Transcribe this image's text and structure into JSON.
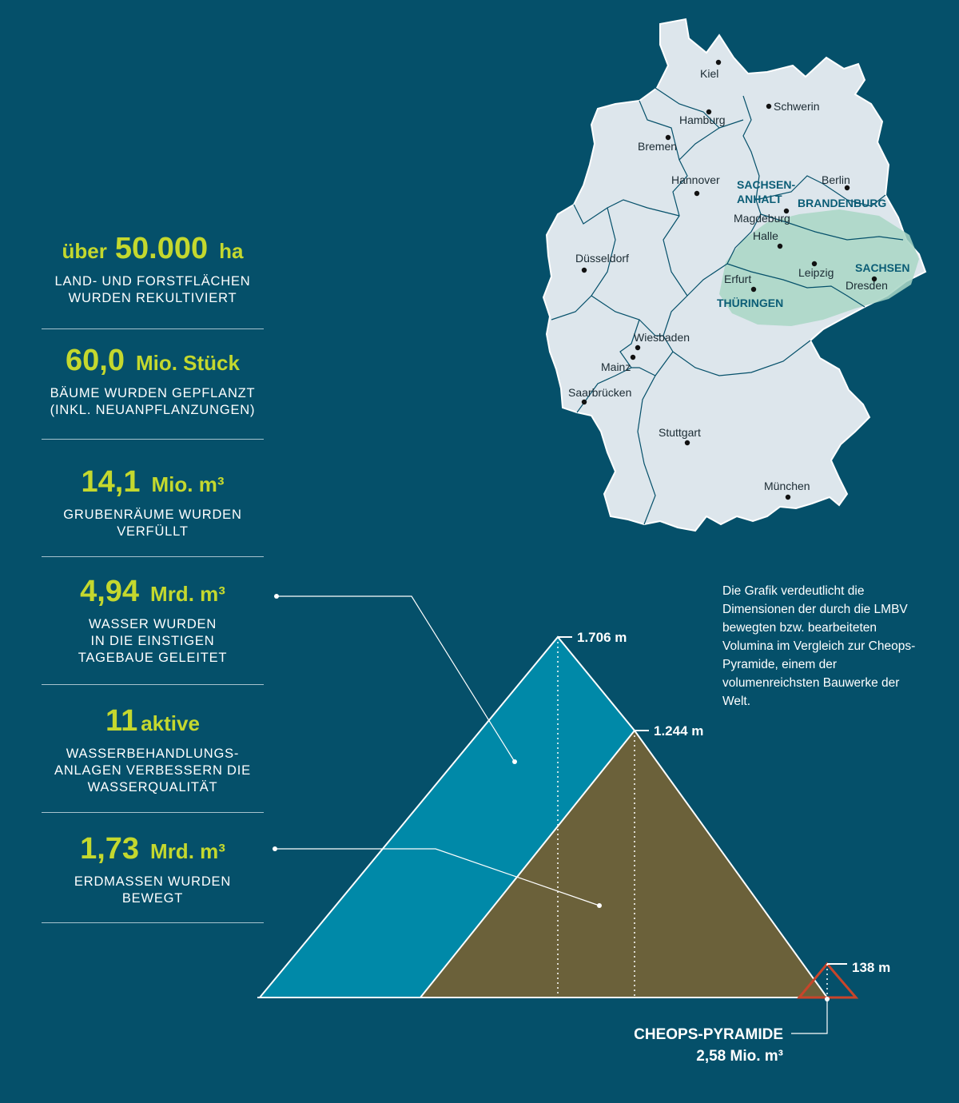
{
  "stats": [
    {
      "pre": "über",
      "num": "50.000",
      "unit": "ha",
      "desc": [
        "LAND- UND FORSTFLÄCHEN",
        "WURDEN REKULTIVIERT"
      ]
    },
    {
      "num": "60,0",
      "unit": "Mio. Stück",
      "desc": [
        "BÄUME WURDEN GEPFLANZT",
        "(INKL. NEUANPFLANZUNGEN)"
      ]
    },
    {
      "num": "14,1",
      "unit": "Mio. m³",
      "desc": [
        "GRUBENRÄUME WURDEN",
        "VERFÜLLT"
      ]
    },
    {
      "num": "4,94",
      "unit": "Mrd. m³",
      "desc": [
        "WASSER WURDEN",
        "IN DIE EINSTIGEN",
        "TAGEBAUE GELEITET"
      ]
    },
    {
      "num": "11",
      "post": "aktive",
      "desc": [
        "WASSERBEHANDLUNGS-",
        "ANLAGEN VERBESSERN DIE",
        "WASSERQUALITÄT"
      ]
    },
    {
      "num": "1,73",
      "unit": "Mrd. m³",
      "desc": [
        "ERDMASSEN WURDEN",
        "BEWEGT"
      ]
    }
  ],
  "note": "Die Grafik verdeutlicht die Dimensionen der durch die LMBV bewegten bzw. bearbeiteten Volumina im Vergleich zur Cheops-Pyramide, einem der volumenreichsten Bauwerke der Welt.",
  "map": {
    "cities": [
      "Kiel",
      "Schwerin",
      "Hamburg",
      "Bremen",
      "Hannover",
      "Berlin",
      "Magdeburg",
      "Halle",
      "Düsseldorf",
      "Erfurt",
      "Leipzig",
      "Dresden",
      "Wiesbaden",
      "Mainz",
      "Saarbrücken",
      "Stuttgart",
      "München"
    ],
    "states": [
      "SACHSEN-",
      "ANHALT",
      "BRANDENBURG",
      "SACHSEN",
      "THÜRINGEN"
    ],
    "colors": {
      "land": "#dde6ec",
      "region": "#a9d6c5",
      "borders": "#05506a"
    }
  },
  "pyramids": {
    "heights": [
      "1.706 m",
      "1.244 m",
      "138 m"
    ],
    "cheops_title": "CHEOPS-PYRAMIDE",
    "cheops_volume": "2,58 Mio. m³",
    "colors": {
      "water": "#0089a8",
      "earth": "#6b613a",
      "cheops": "#c9452a"
    }
  }
}
